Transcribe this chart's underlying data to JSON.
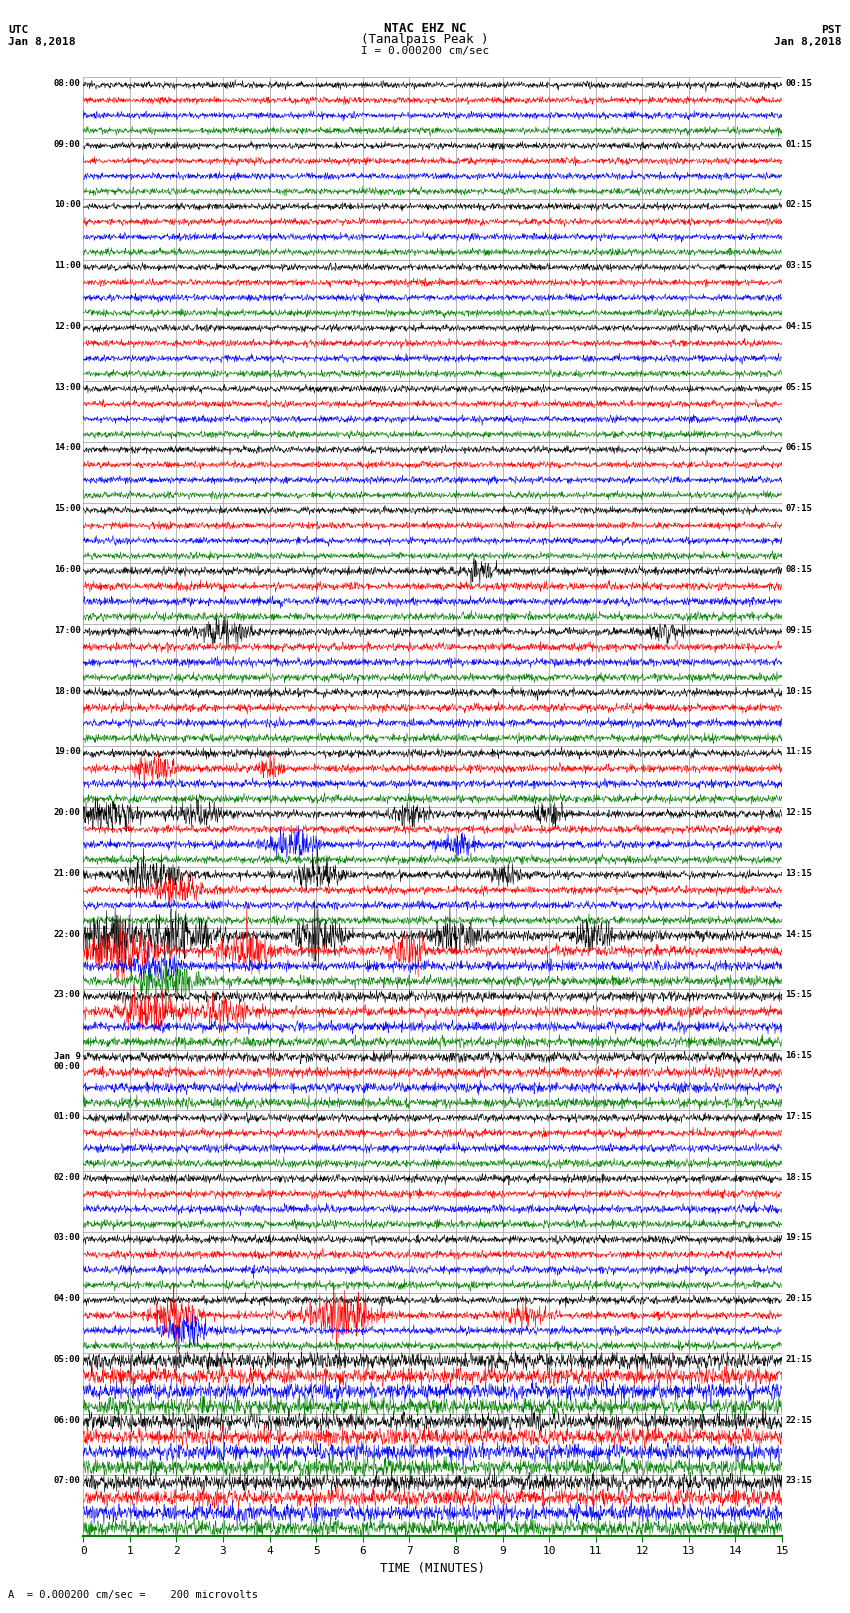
{
  "title_line1": "NTAC EHZ NC",
  "title_line2": "(Tanalpais Peak )",
  "scale_text": "I = 0.000200 cm/sec",
  "left_header": "UTC",
  "left_date": "Jan 8,2018",
  "right_header": "PST",
  "right_date": "Jan 8,2018",
  "bottom_label": "TIME (MINUTES)",
  "footnote": "A  = 0.000200 cm/sec =    200 microvolts",
  "utc_labels": [
    "08:00",
    "09:00",
    "10:00",
    "11:00",
    "12:00",
    "13:00",
    "14:00",
    "15:00",
    "16:00",
    "17:00",
    "18:00",
    "19:00",
    "20:00",
    "21:00",
    "22:00",
    "23:00",
    "Jan 9\n00:00",
    "01:00",
    "02:00",
    "03:00",
    "04:00",
    "05:00",
    "06:00",
    "07:00"
  ],
  "pst_labels": [
    "00:15",
    "01:15",
    "02:15",
    "03:15",
    "04:15",
    "05:15",
    "06:15",
    "07:15",
    "08:15",
    "09:15",
    "10:15",
    "11:15",
    "12:15",
    "13:15",
    "14:15",
    "15:15",
    "16:15",
    "17:15",
    "18:15",
    "19:15",
    "20:15",
    "21:15",
    "22:15",
    "23:15"
  ],
  "n_rows": 24,
  "traces_per_row": 4,
  "colors": [
    "black",
    "red",
    "blue",
    "green"
  ],
  "minutes": 15,
  "background_color": "white",
  "grid_color": "#999999",
  "samples_per_minute": 120
}
